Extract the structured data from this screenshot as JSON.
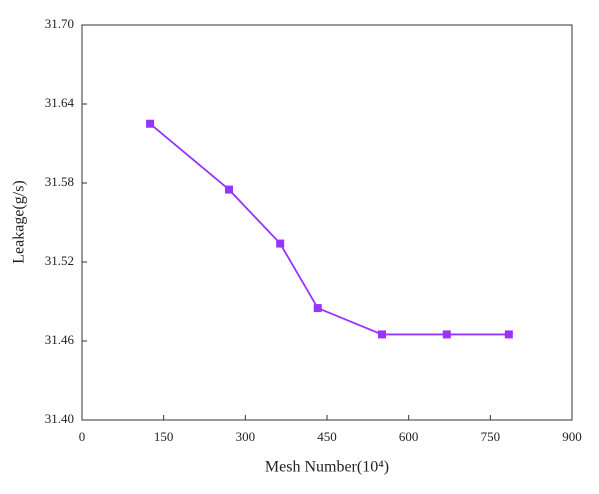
{
  "chart_data": {
    "type": "line",
    "x_label": "Mesh Number(10⁴)",
    "y_label": "Leakage(g/s)",
    "series": [
      {
        "name": "Leakage",
        "color": "#9933ff",
        "x": [
          125,
          270,
          364,
          433,
          551,
          670,
          784
        ],
        "values": [
          31.625,
          31.575,
          31.534,
          31.485,
          31.465,
          31.465,
          31.465
        ]
      }
    ],
    "xlim": [
      0,
      900
    ],
    "xticks": [
      0,
      150,
      300,
      450,
      600,
      750,
      900
    ],
    "ylim": [
      31.4,
      31.7
    ],
    "yticks": [
      {
        "value": 31.4,
        "label": "31.40"
      },
      31.46,
      31.52,
      31.58,
      31.64,
      {
        "value": 31.7,
        "label": "31.70"
      }
    ],
    "grid": false,
    "marker": "square"
  }
}
